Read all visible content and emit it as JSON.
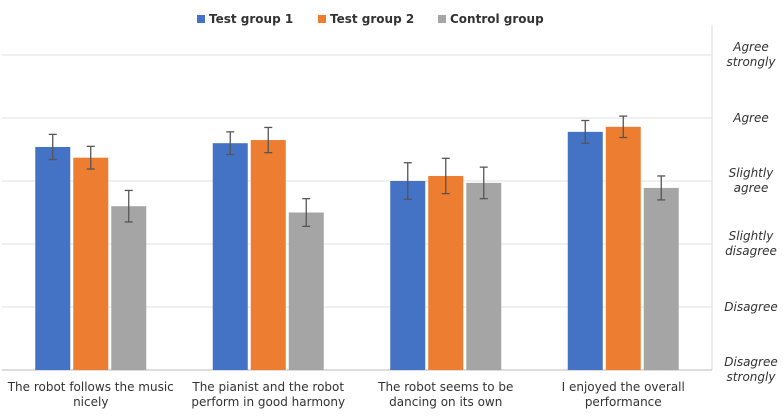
{
  "chart_data": {
    "type": "bar",
    "categories": [
      "The robot follows the music nicely",
      "The pianist and the robot perform in good harmony",
      "The robot seems to be dancing on its own",
      "I enjoyed the overall performance"
    ],
    "series": [
      {
        "name": "Test group 1",
        "color": "#4472c4",
        "values": [
          4.54,
          4.6,
          4.0,
          4.78
        ],
        "errors": [
          0.2,
          0.18,
          0.29,
          0.18
        ]
      },
      {
        "name": "Test group 2",
        "color": "#ed7d31",
        "values": [
          4.37,
          4.65,
          4.08,
          4.86
        ],
        "errors": [
          0.18,
          0.2,
          0.28,
          0.17
        ]
      },
      {
        "name": "Control group",
        "color": "#a5a5a5",
        "values": [
          3.6,
          3.5,
          3.97,
          3.89
        ],
        "errors": [
          0.25,
          0.22,
          0.25,
          0.19
        ]
      }
    ],
    "ylim": [
      1,
      6
    ],
    "yticks": [
      {
        "value": 1,
        "label": "Disagree strongly"
      },
      {
        "value": 2,
        "label": "Disagree"
      },
      {
        "value": 3,
        "label": "Slightly disagree"
      },
      {
        "value": 4,
        "label": "Slightly agree"
      },
      {
        "value": 5,
        "label": "Agree"
      },
      {
        "value": 6,
        "label": "Agree strongly"
      }
    ],
    "grid": true,
    "legend": "top"
  }
}
